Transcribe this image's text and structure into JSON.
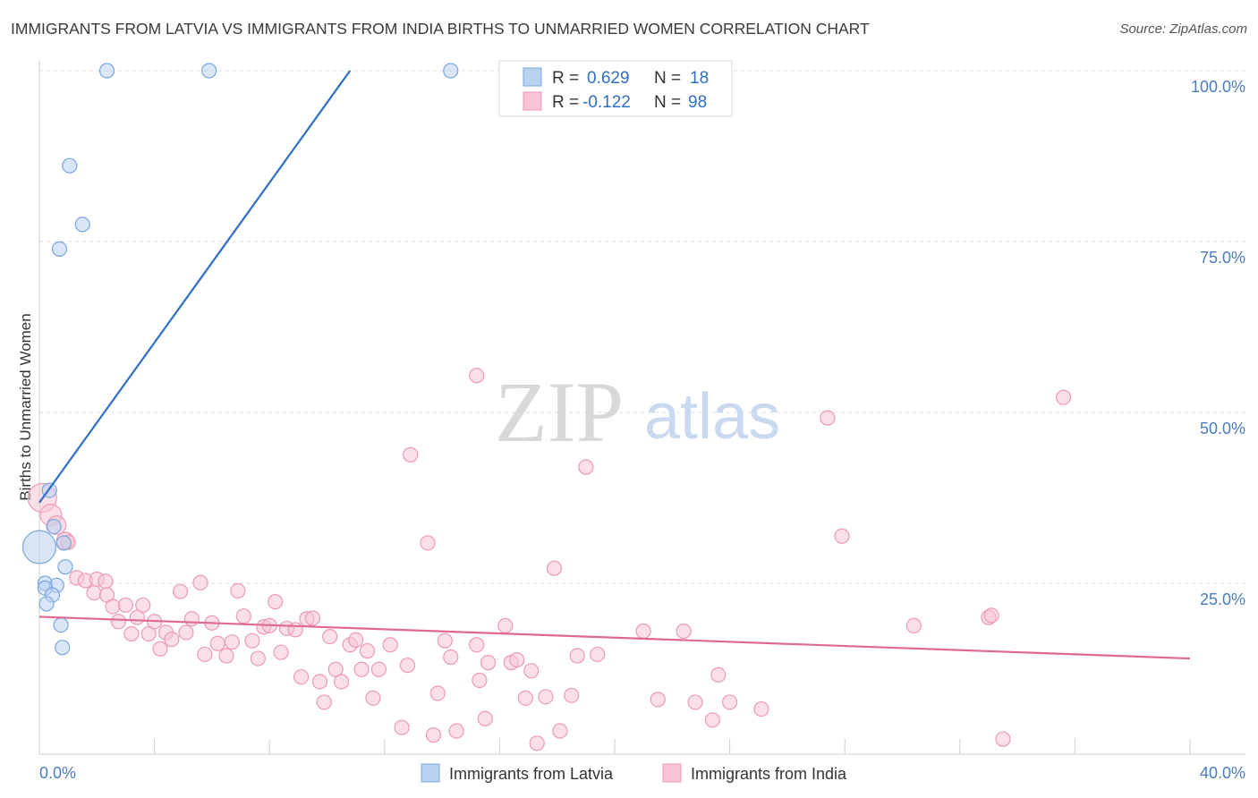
{
  "header": {
    "title": "IMMIGRANTS FROM LATVIA VS IMMIGRANTS FROM INDIA BIRTHS TO UNMARRIED WOMEN CORRELATION CHART",
    "source": "Source: ZipAtlas.com"
  },
  "watermark": {
    "zip": "ZIP",
    "atlas": "atlas"
  },
  "legend": {
    "latvia": {
      "r_label": "R =",
      "r_value": "0.629",
      "n_label": "N =",
      "n_value": "18"
    },
    "india": {
      "r_label": "R =",
      "r_value": "-0.122",
      "n_label": "N =",
      "n_value": "98"
    }
  },
  "colors": {
    "latvia_fill": "#b8d2f2",
    "latvia_stroke": "#7aa6dd",
    "latvia_line": "#2e6fc7",
    "india_fill": "#f8c4d4",
    "india_stroke": "#eb9ab5",
    "india_line": "#e06891",
    "grid": "#dcdcdc",
    "axis_text": "#4a7cc4"
  },
  "chart_data": {
    "type": "scatter",
    "title": "IMMIGRANTS FROM LATVIA VS IMMIGRANTS FROM INDIA BIRTHS TO UNMARRIED WOMEN CORRELATION CHART",
    "xlabel": "",
    "ylabel": "Births to Unmarried Women",
    "xlim": [
      0,
      40
    ],
    "ylim": [
      0,
      100
    ],
    "x_tick_labels": [
      "0.0%",
      "40.0%"
    ],
    "y_ticks": [
      25,
      50,
      75,
      100
    ],
    "y_tick_labels": [
      "25.0%",
      "50.0%",
      "75.0%",
      "100.0%"
    ],
    "grid": true,
    "legend_position": "top-center",
    "series": [
      {
        "name": "Immigrants from Latvia",
        "r": 0.629,
        "n": 18,
        "trend": {
          "x0": 0,
          "y0": 36.8,
          "x1": 10.8,
          "y1": 100
        },
        "points": [
          {
            "x": 2.35,
            "y": 100,
            "s": 1
          },
          {
            "x": 5.9,
            "y": 100,
            "s": 1
          },
          {
            "x": 14.3,
            "y": 100,
            "s": 1
          },
          {
            "x": 1.05,
            "y": 86.1,
            "s": 1
          },
          {
            "x": 1.5,
            "y": 77.5,
            "s": 1
          },
          {
            "x": 0.7,
            "y": 73.9,
            "s": 1
          },
          {
            "x": 0.35,
            "y": 38.6,
            "s": 1
          },
          {
            "x": 0.5,
            "y": 33.3,
            "s": 1
          },
          {
            "x": 0.85,
            "y": 30.9,
            "s": 1
          },
          {
            "x": 0.0,
            "y": 30.3,
            "s": 2.3
          },
          {
            "x": 0.9,
            "y": 27.4,
            "s": 1
          },
          {
            "x": 0.2,
            "y": 25.0,
            "s": 1
          },
          {
            "x": 0.6,
            "y": 24.7,
            "s": 1
          },
          {
            "x": 0.2,
            "y": 24.3,
            "s": 1
          },
          {
            "x": 0.45,
            "y": 23.3,
            "s": 1
          },
          {
            "x": 0.25,
            "y": 22.0,
            "s": 1
          },
          {
            "x": 0.75,
            "y": 18.9,
            "s": 1
          },
          {
            "x": 0.8,
            "y": 15.6,
            "s": 1
          }
        ]
      },
      {
        "name": "Immigrants from India",
        "r": -0.122,
        "n": 98,
        "trend": {
          "x0": 0,
          "y0": 20.1,
          "x1": 40,
          "y1": 14.0
        },
        "points": [
          {
            "x": 0.1,
            "y": 37.5,
            "s": 2
          },
          {
            "x": 0.4,
            "y": 35.0,
            "s": 1.5
          },
          {
            "x": 0.6,
            "y": 33.5,
            "s": 1.3
          },
          {
            "x": 0.9,
            "y": 31.2,
            "s": 1.2
          },
          {
            "x": 1.0,
            "y": 31.0,
            "s": 1
          },
          {
            "x": 1.3,
            "y": 25.8,
            "s": 1
          },
          {
            "x": 1.6,
            "y": 25.4,
            "s": 1
          },
          {
            "x": 1.9,
            "y": 23.6,
            "s": 1
          },
          {
            "x": 2.0,
            "y": 25.6,
            "s": 1
          },
          {
            "x": 2.3,
            "y": 25.3,
            "s": 1
          },
          {
            "x": 2.35,
            "y": 23.3,
            "s": 1
          },
          {
            "x": 2.55,
            "y": 21.6,
            "s": 1
          },
          {
            "x": 2.75,
            "y": 19.4,
            "s": 1
          },
          {
            "x": 3.0,
            "y": 21.8,
            "s": 1
          },
          {
            "x": 3.2,
            "y": 17.6,
            "s": 1
          },
          {
            "x": 3.4,
            "y": 20.0,
            "s": 1
          },
          {
            "x": 3.6,
            "y": 21.8,
            "s": 1
          },
          {
            "x": 3.8,
            "y": 17.6,
            "s": 1
          },
          {
            "x": 4.0,
            "y": 19.4,
            "s": 1
          },
          {
            "x": 4.2,
            "y": 15.4,
            "s": 1
          },
          {
            "x": 4.4,
            "y": 17.8,
            "s": 1
          },
          {
            "x": 4.6,
            "y": 16.8,
            "s": 1
          },
          {
            "x": 4.9,
            "y": 23.8,
            "s": 1
          },
          {
            "x": 5.1,
            "y": 17.8,
            "s": 1
          },
          {
            "x": 5.3,
            "y": 19.8,
            "s": 1
          },
          {
            "x": 5.6,
            "y": 25.1,
            "s": 1
          },
          {
            "x": 5.75,
            "y": 14.6,
            "s": 1
          },
          {
            "x": 6.0,
            "y": 19.2,
            "s": 1
          },
          {
            "x": 6.2,
            "y": 16.2,
            "s": 1
          },
          {
            "x": 6.5,
            "y": 14.4,
            "s": 1
          },
          {
            "x": 6.7,
            "y": 16.4,
            "s": 1
          },
          {
            "x": 6.9,
            "y": 23.9,
            "s": 1
          },
          {
            "x": 7.1,
            "y": 20.2,
            "s": 1
          },
          {
            "x": 7.4,
            "y": 16.6,
            "s": 1
          },
          {
            "x": 7.6,
            "y": 14.0,
            "s": 1
          },
          {
            "x": 7.8,
            "y": 18.6,
            "s": 1
          },
          {
            "x": 8.0,
            "y": 18.8,
            "s": 1
          },
          {
            "x": 8.2,
            "y": 22.3,
            "s": 1
          },
          {
            "x": 8.4,
            "y": 14.9,
            "s": 1
          },
          {
            "x": 8.6,
            "y": 18.4,
            "s": 1
          },
          {
            "x": 8.9,
            "y": 18.2,
            "s": 1
          },
          {
            "x": 9.1,
            "y": 11.3,
            "s": 1
          },
          {
            "x": 9.3,
            "y": 19.8,
            "s": 1
          },
          {
            "x": 9.5,
            "y": 19.9,
            "s": 1
          },
          {
            "x": 9.75,
            "y": 10.6,
            "s": 1
          },
          {
            "x": 9.9,
            "y": 7.6,
            "s": 1
          },
          {
            "x": 10.1,
            "y": 17.2,
            "s": 1
          },
          {
            "x": 10.3,
            "y": 12.4,
            "s": 1
          },
          {
            "x": 10.5,
            "y": 10.6,
            "s": 1
          },
          {
            "x": 10.8,
            "y": 16.0,
            "s": 1
          },
          {
            "x": 11.0,
            "y": 16.7,
            "s": 1
          },
          {
            "x": 11.2,
            "y": 12.4,
            "s": 1
          },
          {
            "x": 11.4,
            "y": 15.1,
            "s": 1
          },
          {
            "x": 11.6,
            "y": 8.2,
            "s": 1
          },
          {
            "x": 11.8,
            "y": 12.4,
            "s": 1
          },
          {
            "x": 12.2,
            "y": 16.0,
            "s": 1
          },
          {
            "x": 12.6,
            "y": 3.9,
            "s": 1
          },
          {
            "x": 12.8,
            "y": 13.0,
            "s": 1
          },
          {
            "x": 12.9,
            "y": 43.8,
            "s": 1
          },
          {
            "x": 13.5,
            "y": 30.9,
            "s": 1
          },
          {
            "x": 13.7,
            "y": 2.8,
            "s": 1
          },
          {
            "x": 13.85,
            "y": 8.9,
            "s": 1
          },
          {
            "x": 14.1,
            "y": 16.6,
            "s": 1
          },
          {
            "x": 14.3,
            "y": 14.2,
            "s": 1
          },
          {
            "x": 14.5,
            "y": 3.4,
            "s": 1
          },
          {
            "x": 15.2,
            "y": 16.0,
            "s": 1
          },
          {
            "x": 15.2,
            "y": 55.4,
            "s": 1
          },
          {
            "x": 15.3,
            "y": 10.8,
            "s": 1
          },
          {
            "x": 15.5,
            "y": 5.2,
            "s": 1
          },
          {
            "x": 15.6,
            "y": 13.4,
            "s": 1
          },
          {
            "x": 16.2,
            "y": 18.8,
            "s": 1
          },
          {
            "x": 16.4,
            "y": 13.4,
            "s": 1
          },
          {
            "x": 16.6,
            "y": 13.8,
            "s": 1
          },
          {
            "x": 16.9,
            "y": 8.2,
            "s": 1
          },
          {
            "x": 17.1,
            "y": 12.2,
            "s": 1
          },
          {
            "x": 17.3,
            "y": 1.6,
            "s": 1
          },
          {
            "x": 17.6,
            "y": 8.4,
            "s": 1
          },
          {
            "x": 17.9,
            "y": 27.2,
            "s": 1
          },
          {
            "x": 18.1,
            "y": 3.4,
            "s": 1
          },
          {
            "x": 18.5,
            "y": 8.6,
            "s": 1
          },
          {
            "x": 18.7,
            "y": 14.4,
            "s": 1
          },
          {
            "x": 19.0,
            "y": 42.0,
            "s": 1
          },
          {
            "x": 19.4,
            "y": 14.6,
            "s": 1
          },
          {
            "x": 21.0,
            "y": 18.0,
            "s": 1
          },
          {
            "x": 21.5,
            "y": 8.0,
            "s": 1
          },
          {
            "x": 22.4,
            "y": 18.0,
            "s": 1
          },
          {
            "x": 22.8,
            "y": 7.6,
            "s": 1
          },
          {
            "x": 23.4,
            "y": 5.0,
            "s": 1
          },
          {
            "x": 23.6,
            "y": 11.6,
            "s": 1
          },
          {
            "x": 24.0,
            "y": 7.6,
            "s": 1
          },
          {
            "x": 25.1,
            "y": 6.6,
            "s": 1
          },
          {
            "x": 27.4,
            "y": 49.2,
            "s": 1
          },
          {
            "x": 27.9,
            "y": 31.9,
            "s": 1
          },
          {
            "x": 30.4,
            "y": 18.8,
            "s": 1
          },
          {
            "x": 33.0,
            "y": 20.0,
            "s": 1
          },
          {
            "x": 33.1,
            "y": 20.3,
            "s": 1
          },
          {
            "x": 33.5,
            "y": 2.2,
            "s": 1
          },
          {
            "x": 35.6,
            "y": 52.2,
            "s": 1
          }
        ]
      }
    ]
  },
  "bottom_legend": {
    "latvia_label": "Immigrants from Latvia",
    "india_label": "Immigrants from India"
  }
}
